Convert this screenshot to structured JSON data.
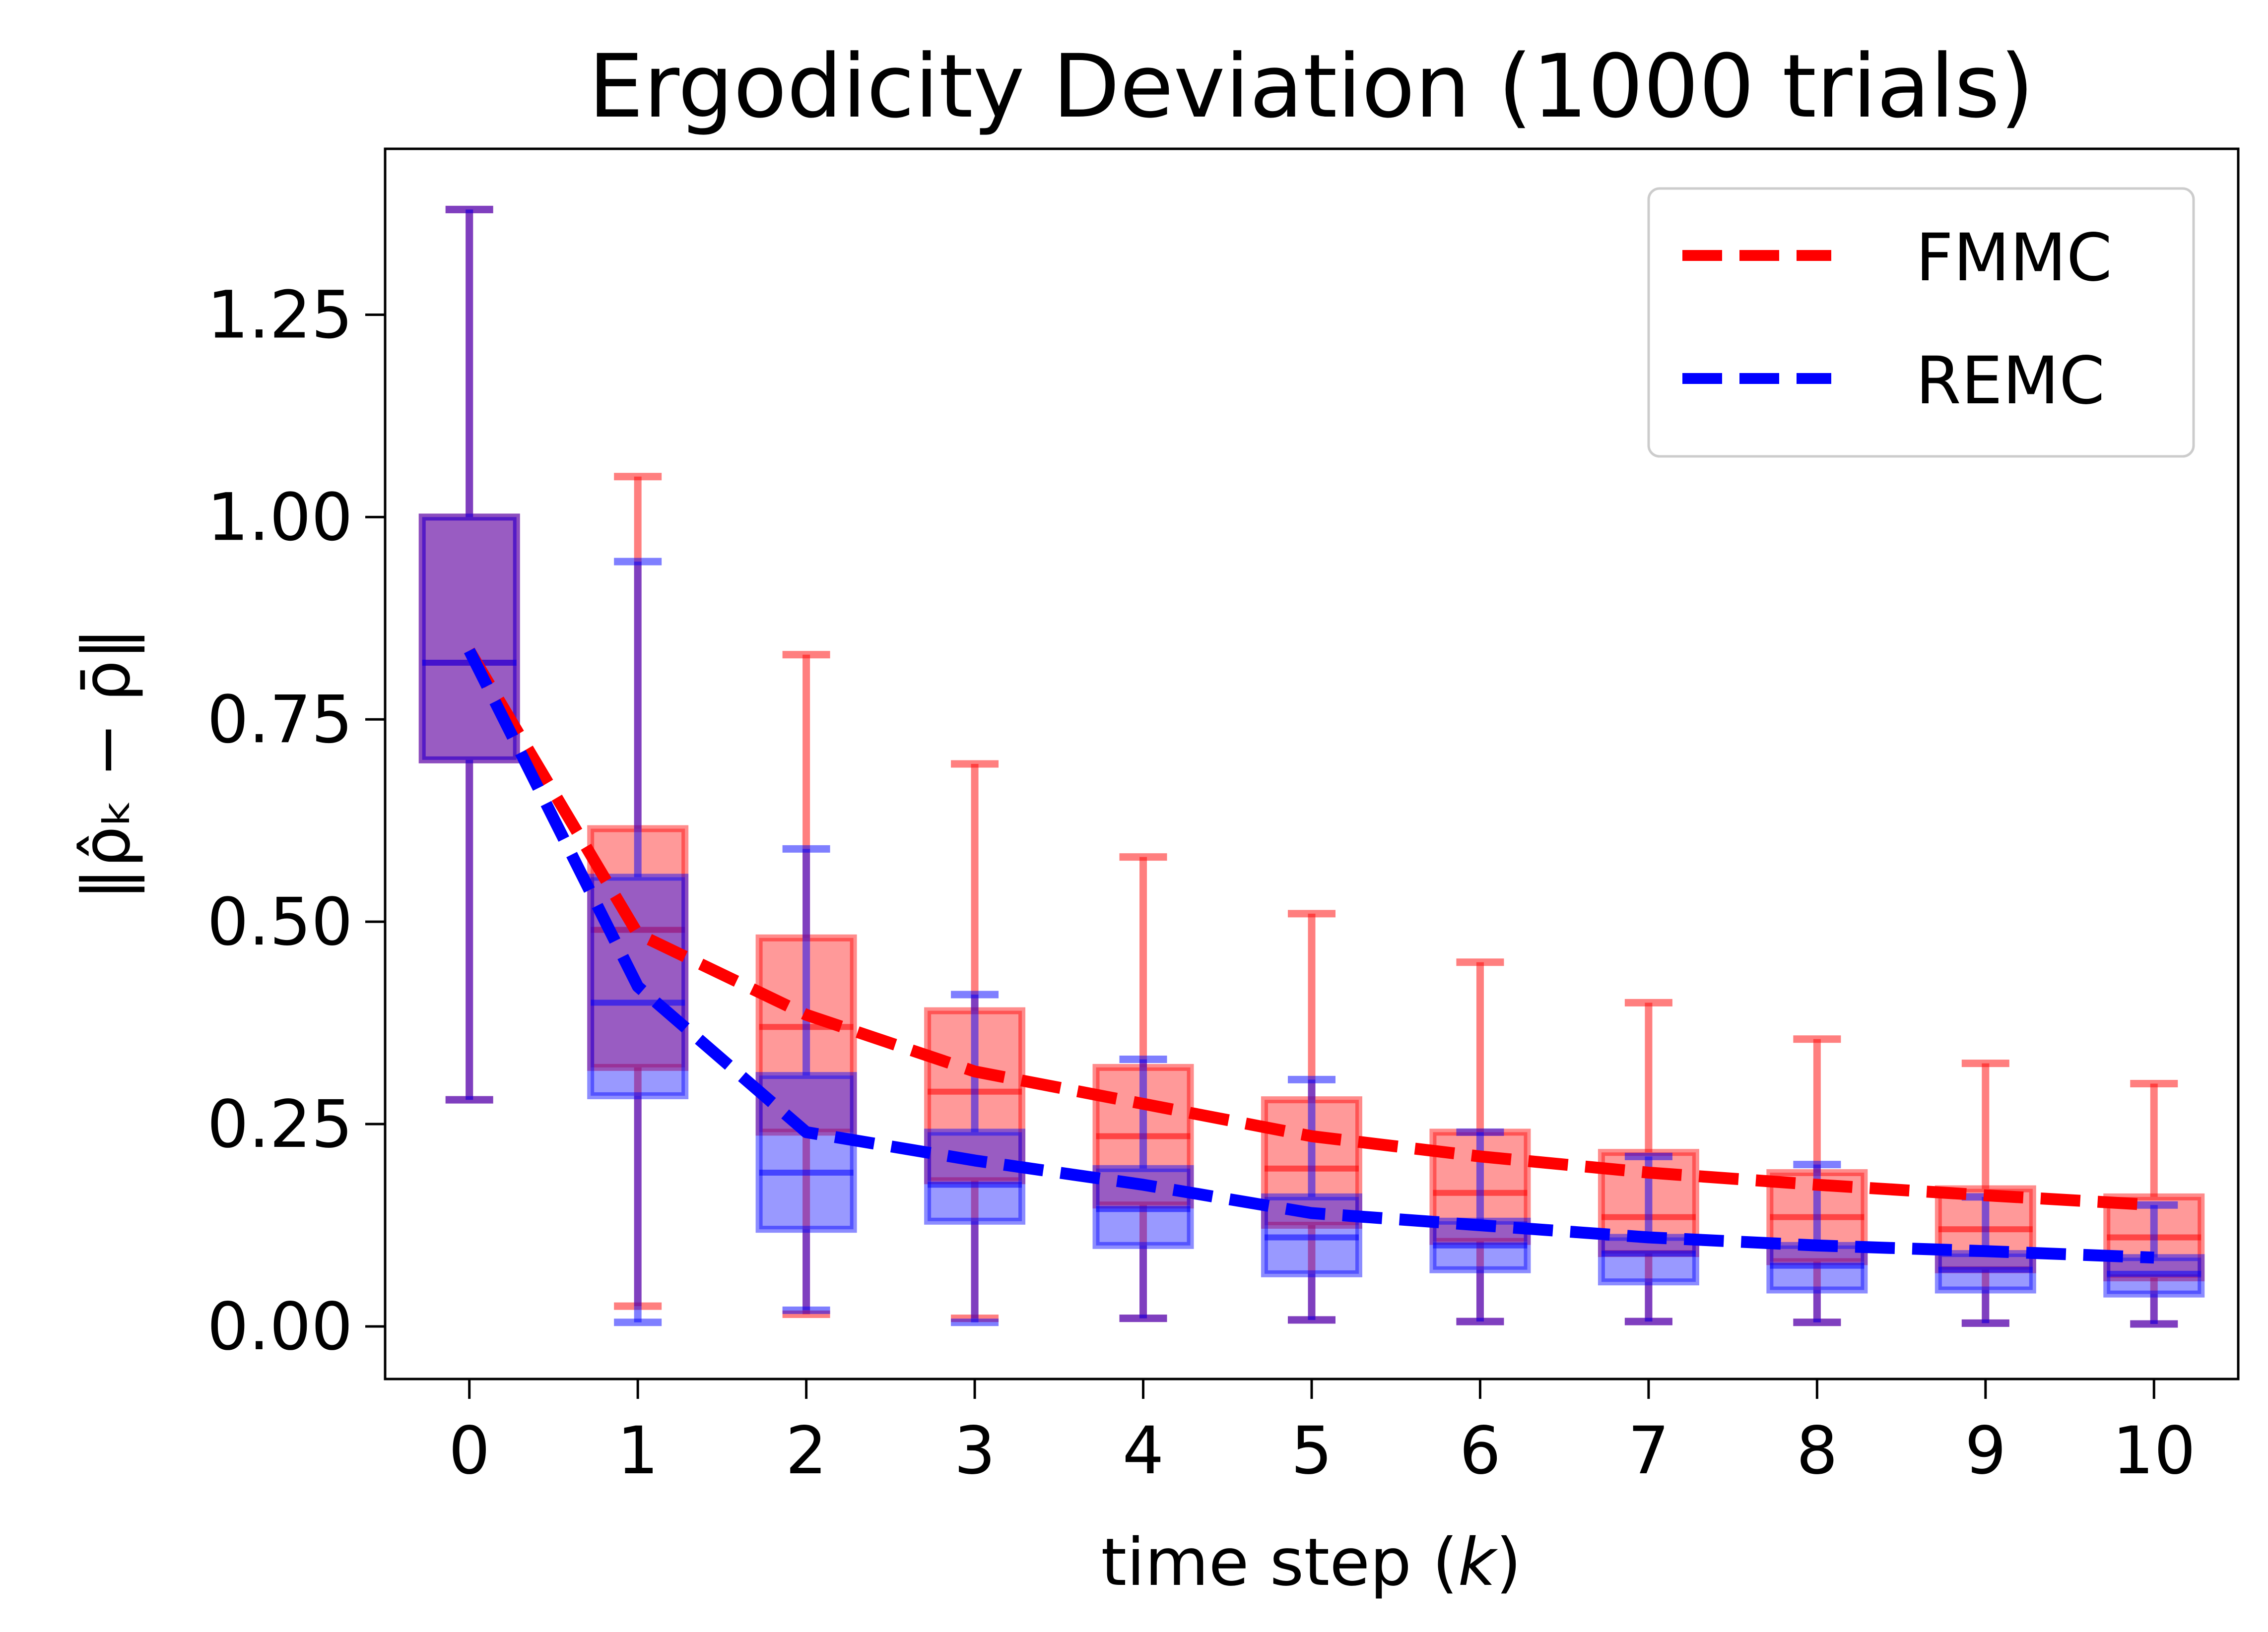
{
  "chart_data": {
    "type": "box",
    "title": "Ergodicity Deviation (1000 trials)",
    "xlabel_prefix": "time step (",
    "xlabel_var": "k",
    "xlabel_suffix": ")",
    "ylabel": "‖ρ̂ₖ − ρ̄‖",
    "x_ticks": [
      "0",
      "1",
      "2",
      "3",
      "4",
      "5",
      "6",
      "7",
      "8",
      "9",
      "10"
    ],
    "y_ticks": [
      "0.00",
      "0.25",
      "0.50",
      "0.75",
      "1.00",
      "1.25"
    ],
    "y_tick_values": [
      0.0,
      0.25,
      0.5,
      0.75,
      1.0,
      1.25
    ],
    "xlim": [
      -0.5,
      10.5
    ],
    "ylim": [
      -0.065,
      1.455
    ],
    "legend": {
      "position": "top-right",
      "entries": [
        {
          "label": "FMMC",
          "color": "#ff0000"
        },
        {
          "label": "REMC",
          "color": "#0000ff"
        }
      ]
    },
    "series": [
      {
        "name": "FMMC",
        "color": "#ff0000",
        "mean": [
          0.835,
          0.485,
          0.385,
          0.315,
          0.275,
          0.235,
          0.21,
          0.19,
          0.175,
          0.162,
          0.15
        ],
        "boxes": [
          {
            "whislo": 0.28,
            "q1": 0.7,
            "med": 0.82,
            "q3": 1.0,
            "whishi": 1.38
          },
          {
            "whislo": 0.025,
            "q1": 0.32,
            "med": 0.49,
            "q3": 0.615,
            "whishi": 1.05
          },
          {
            "whislo": 0.015,
            "q1": 0.24,
            "med": 0.37,
            "q3": 0.48,
            "whishi": 0.83
          },
          {
            "whislo": 0.01,
            "q1": 0.18,
            "med": 0.29,
            "q3": 0.39,
            "whishi": 0.695
          },
          {
            "whislo": 0.01,
            "q1": 0.15,
            "med": 0.235,
            "q3": 0.32,
            "whishi": 0.58
          },
          {
            "whislo": 0.008,
            "q1": 0.125,
            "med": 0.195,
            "q3": 0.28,
            "whishi": 0.51
          },
          {
            "whislo": 0.006,
            "q1": 0.105,
            "med": 0.165,
            "q3": 0.24,
            "whishi": 0.45
          },
          {
            "whislo": 0.006,
            "q1": 0.09,
            "med": 0.135,
            "q3": 0.215,
            "whishi": 0.4
          },
          {
            "whislo": 0.005,
            "q1": 0.08,
            "med": 0.135,
            "q3": 0.19,
            "whishi": 0.355
          },
          {
            "whislo": 0.004,
            "q1": 0.07,
            "med": 0.12,
            "q3": 0.17,
            "whishi": 0.325
          },
          {
            "whislo": 0.003,
            "q1": 0.06,
            "med": 0.11,
            "q3": 0.16,
            "whishi": 0.3
          }
        ]
      },
      {
        "name": "REMC",
        "color": "#0000ff",
        "mean": [
          0.835,
          0.42,
          0.24,
          0.205,
          0.175,
          0.14,
          0.125,
          0.11,
          0.1,
          0.093,
          0.085
        ],
        "boxes": [
          {
            "whislo": 0.28,
            "q1": 0.7,
            "med": 0.82,
            "q3": 1.0,
            "whishi": 1.38
          },
          {
            "whislo": 0.005,
            "q1": 0.285,
            "med": 0.4,
            "q3": 0.555,
            "whishi": 0.945
          },
          {
            "whislo": 0.02,
            "q1": 0.12,
            "med": 0.19,
            "q3": 0.31,
            "whishi": 0.59
          },
          {
            "whislo": 0.005,
            "q1": 0.13,
            "med": 0.175,
            "q3": 0.24,
            "whishi": 0.41
          },
          {
            "whislo": 0.01,
            "q1": 0.1,
            "med": 0.145,
            "q3": 0.195,
            "whishi": 0.33
          },
          {
            "whislo": 0.008,
            "q1": 0.065,
            "med": 0.11,
            "q3": 0.16,
            "whishi": 0.305
          },
          {
            "whislo": 0.006,
            "q1": 0.07,
            "med": 0.1,
            "q3": 0.13,
            "whishi": 0.24
          },
          {
            "whislo": 0.006,
            "q1": 0.055,
            "med": 0.09,
            "q3": 0.11,
            "whishi": 0.21
          },
          {
            "whislo": 0.005,
            "q1": 0.045,
            "med": 0.075,
            "q3": 0.1,
            "whishi": 0.2
          },
          {
            "whislo": 0.004,
            "q1": 0.045,
            "med": 0.07,
            "q3": 0.09,
            "whishi": 0.16
          },
          {
            "whislo": 0.003,
            "q1": 0.04,
            "med": 0.065,
            "q3": 0.085,
            "whishi": 0.15
          }
        ]
      }
    ]
  }
}
